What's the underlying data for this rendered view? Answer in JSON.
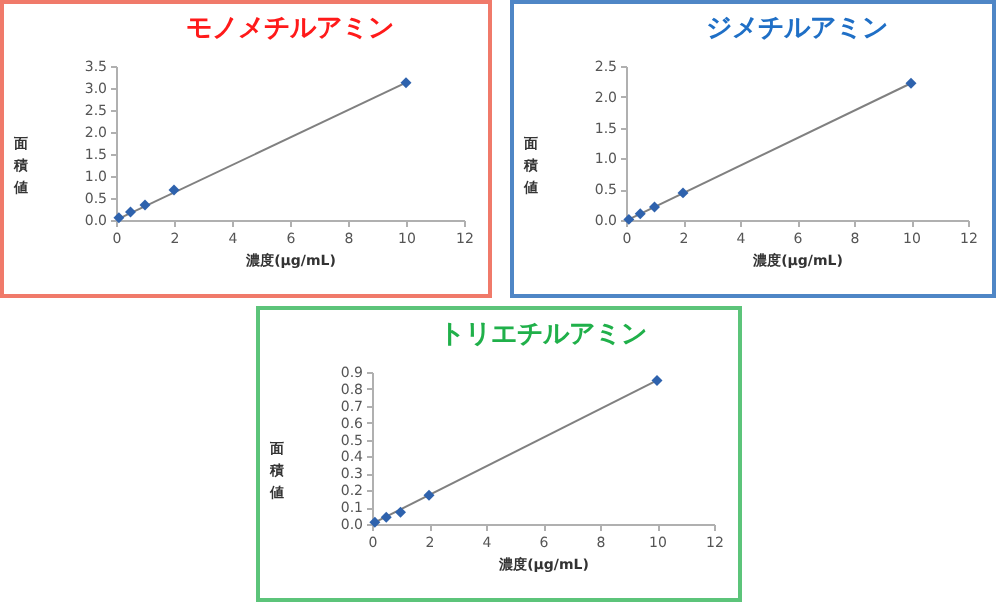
{
  "chart_data": [
    {
      "type": "scatter",
      "title": "モノメチルアミン",
      "xlabel": "濃度(μg/mL)",
      "ylabel": "面積値",
      "marker": "diamond",
      "grid": false,
      "xlim": [
        0,
        12
      ],
      "xticks": [
        0,
        2,
        4,
        6,
        8,
        10,
        12
      ],
      "ylim": [
        0,
        3.5
      ],
      "yticks": [
        {
          "value": 0,
          "label": "0.0"
        },
        0.5,
        {
          "value": 1,
          "label": "1.0"
        },
        1.5,
        {
          "value": 2,
          "label": "2.0"
        },
        2.5,
        {
          "value": 3,
          "label": "3.0"
        },
        3.5
      ],
      "series": [
        {
          "type": "line",
          "marker": "none",
          "color": "#808080",
          "x": [
            0.1,
            10
          ],
          "values": [
            0.03,
            3.12
          ]
        },
        {
          "color": "#2e62ad",
          "x": [
            0.1,
            0.5,
            1,
            2,
            10
          ],
          "values": [
            0.05,
            0.18,
            0.34,
            0.68,
            3.12
          ]
        }
      ]
    },
    {
      "type": "scatter",
      "title": "ジメチルアミン",
      "xlabel": "濃度(μg/mL)",
      "ylabel": "面積値",
      "marker": "diamond",
      "grid": false,
      "xlim": [
        0,
        12
      ],
      "xticks": [
        0,
        2,
        4,
        6,
        8,
        10,
        12
      ],
      "ylim": [
        0,
        2.5
      ],
      "yticks": [
        {
          "value": 0,
          "label": "0.0"
        },
        0.5,
        {
          "value": 1,
          "label": "1.0"
        },
        1.5,
        {
          "value": 2,
          "label": "2.0"
        },
        2.5
      ],
      "series": [
        {
          "type": "line",
          "marker": "none",
          "color": "#808080",
          "x": [
            0.1,
            10
          ],
          "values": [
            0.01,
            2.22
          ]
        },
        {
          "color": "#2e62ad",
          "x": [
            0.1,
            0.5,
            1,
            2,
            10
          ],
          "values": [
            0.01,
            0.1,
            0.21,
            0.44,
            2.22
          ]
        }
      ]
    },
    {
      "type": "scatter",
      "title": "トリエチルアミン",
      "xlabel": "濃度(μg/mL)",
      "ylabel": "面積値",
      "marker": "diamond",
      "grid": false,
      "xlim": [
        0,
        12
      ],
      "xticks": [
        0,
        2,
        4,
        6,
        8,
        10,
        12
      ],
      "ylim": [
        0,
        0.9
      ],
      "yticks": [
        {
          "value": 0,
          "label": "0.0"
        },
        0.1,
        0.2,
        0.3,
        0.4,
        0.5,
        0.6,
        0.7,
        0.8,
        0.9
      ],
      "series": [
        {
          "type": "line",
          "marker": "none",
          "color": "#808080",
          "x": [
            0.1,
            10
          ],
          "values": [
            0.01,
            0.85
          ]
        },
        {
          "color": "#2e62ad",
          "x": [
            0.1,
            0.5,
            1,
            2,
            10
          ],
          "values": [
            0.01,
            0.04,
            0.07,
            0.17,
            0.85
          ]
        }
      ]
    }
  ]
}
